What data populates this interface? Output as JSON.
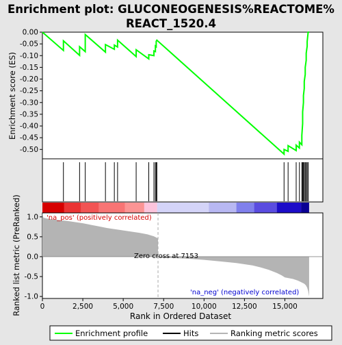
{
  "chart_data": {
    "type": "line",
    "title_line1": "Enrichment plot: GLUCONEOGENESIS%REACTOME%",
    "title_line2": "REACT_1520.4",
    "es_panel": {
      "ylabel": "Enrichment score (ES)",
      "yticks": [
        "0.00",
        "-0.05",
        "-0.10",
        "-0.15",
        "-0.20",
        "-0.25",
        "-0.30",
        "-0.35",
        "-0.40",
        "-0.45",
        "-0.50"
      ],
      "ytick_values": [
        0,
        -0.05,
        -0.1,
        -0.15,
        -0.2,
        -0.25,
        -0.3,
        -0.35,
        -0.4,
        -0.45,
        -0.5
      ],
      "ylim": [
        -0.54,
        0.0
      ],
      "xlim": [
        0,
        17350
      ],
      "line_color": "#00ff00",
      "curve_x": [
        0,
        1300,
        1300,
        2300,
        2300,
        2650,
        2650,
        3900,
        3900,
        4450,
        4450,
        4650,
        4650,
        5800,
        5800,
        6580,
        6580,
        6900,
        6900,
        6990,
        6990,
        7040,
        7040,
        7080,
        7080,
        14950,
        14950,
        15200,
        15200,
        15700,
        15700,
        15900,
        15900,
        16050,
        16050,
        16100,
        16100,
        16150,
        16150,
        16200,
        16200,
        16260,
        16260,
        16320,
        16320,
        16380,
        16380,
        16440,
        16440,
        16500
      ],
      "curve_y": [
        0.0,
        -0.078,
        -0.037,
        -0.099,
        -0.062,
        -0.083,
        -0.01,
        -0.085,
        -0.053,
        -0.073,
        -0.055,
        -0.063,
        -0.034,
        -0.104,
        -0.075,
        -0.114,
        -0.096,
        -0.1,
        -0.08,
        -0.083,
        -0.059,
        -0.062,
        -0.039,
        -0.034,
        -0.034,
        -0.52,
        -0.5,
        -0.508,
        -0.484,
        -0.505,
        -0.482,
        -0.494,
        -0.469,
        -0.48,
        -0.44,
        -0.39,
        -0.34,
        -0.3,
        -0.27,
        -0.24,
        -0.21,
        -0.18,
        -0.15,
        -0.12,
        -0.09,
        -0.06,
        -0.04,
        0.0,
        0.0,
        0.0
      ]
    },
    "hits": [
      1300,
      2300,
      2650,
      3900,
      4450,
      4650,
      5800,
      6580,
      6900,
      6990,
      7040,
      7080,
      14950,
      15200,
      15700,
      15900,
      16050,
      16100,
      16150,
      16200,
      16260,
      16320,
      16380,
      16440
    ],
    "colorbar": [
      {
        "start": 0,
        "end": 1350,
        "color": "#d60000"
      },
      {
        "start": 1350,
        "end": 2400,
        "color": "#ea3434"
      },
      {
        "start": 2400,
        "end": 3500,
        "color": "#f25454"
      },
      {
        "start": 3500,
        "end": 5100,
        "color": "#f87474"
      },
      {
        "start": 5100,
        "end": 6300,
        "color": "#fb9494"
      },
      {
        "start": 6300,
        "end": 7100,
        "color": "#fcc4dc"
      },
      {
        "start": 7100,
        "end": 10300,
        "color": "#d4d4f8"
      },
      {
        "start": 10300,
        "end": 12000,
        "color": "#b8b8f2"
      },
      {
        "start": 12000,
        "end": 13100,
        "color": "#8080ec"
      },
      {
        "start": 13100,
        "end": 14500,
        "color": "#5a4ce0"
      },
      {
        "start": 14500,
        "end": 16000,
        "color": "#1c0cc8"
      },
      {
        "start": 16000,
        "end": 16500,
        "color": "#0a0094"
      }
    ],
    "rank_panel": {
      "ylabel": "Ranked list metric (PreRanked)",
      "xlabel": "Rank in Ordered Dataset",
      "yticks": [
        "1.0",
        "0.5",
        "0.0",
        "-0.5",
        "-1.0"
      ],
      "ytick_values": [
        1.0,
        0.5,
        0.0,
        -0.5,
        -1.0
      ],
      "ylim": [
        -1.05,
        1.1
      ],
      "xticks": [
        "0",
        "2,500",
        "5,000",
        "7,500",
        "10,000",
        "12,500",
        "15,000"
      ],
      "xtick_values": [
        0,
        2500,
        5000,
        7500,
        10000,
        12500,
        15000
      ],
      "metric_x": [
        0,
        60,
        250,
        600,
        1000,
        1500,
        2000,
        2500,
        3000,
        3500,
        4000,
        4500,
        5000,
        5500,
        6000,
        6500,
        6900,
        7153,
        7154,
        9000,
        10000,
        11000,
        12000,
        12500,
        13000,
        13500,
        14000,
        14500,
        14800,
        15000,
        15500,
        15800,
        16000,
        16200,
        16300,
        16380,
        16440,
        16500
      ],
      "metric_y": [
        1.1,
        0.98,
        0.96,
        0.94,
        0.92,
        0.9,
        0.87,
        0.84,
        0.8,
        0.76,
        0.72,
        0.69,
        0.66,
        0.63,
        0.6,
        0.56,
        0.51,
        0.46,
        -0.02,
        -0.05,
        -0.08,
        -0.12,
        -0.16,
        -0.19,
        -0.22,
        -0.27,
        -0.33,
        -0.41,
        -0.47,
        -0.52,
        -0.56,
        -0.6,
        -0.64,
        -0.68,
        -0.72,
        -0.78,
        -0.86,
        -1.0
      ],
      "zero_cross_label": "Zero cross at 7153",
      "zero_cross_x": 7153,
      "pos_label": "'na_pos' (positively correlated)",
      "pos_color": "#d60000",
      "neg_label": "'na_neg' (negatively correlated)",
      "neg_color": "#0000d0",
      "fill_color": "#b4b4b4"
    },
    "legend": [
      {
        "label": "Enrichment profile",
        "kind": "line",
        "color": "#00ff00"
      },
      {
        "label": "Hits",
        "kind": "line",
        "color": "#000000"
      },
      {
        "label": "Ranking metric scores",
        "kind": "line",
        "color": "#b4b4b4"
      }
    ]
  }
}
